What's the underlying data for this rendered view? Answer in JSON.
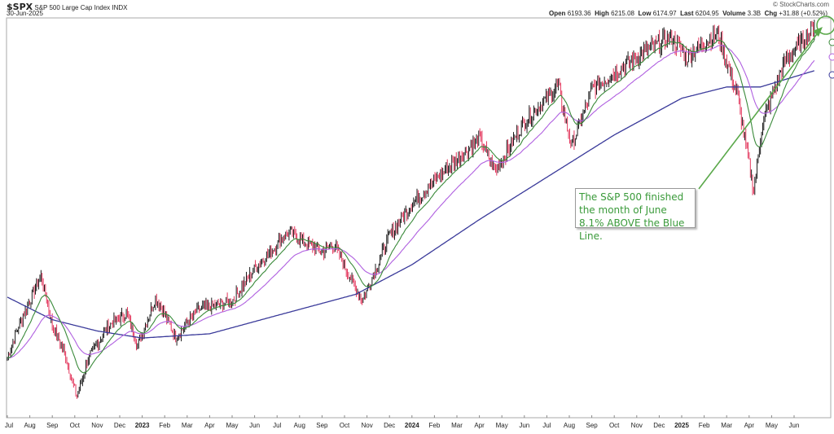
{
  "header": {
    "symbol": "$SPX",
    "name": "S&P 500 Large Cap Index",
    "exchange": "INDX",
    "date": "30-Jun-2025",
    "brand": "© StockCharts.com",
    "open_label": "Open",
    "open": "6193.36",
    "high_label": "High",
    "high": "6215.08",
    "low_label": "Low",
    "low": "6174.97",
    "last_label": "Last",
    "last": "6204.95",
    "volume_label": "Volume",
    "volume": "3.3B",
    "chg_label": "Chg",
    "chg": "+31.88 (+0.52%)"
  },
  "annotation": {
    "text": "The S&P 500 finished the month of June 8.1% ABOVE the Blue Line."
  },
  "chart_data": {
    "type": "line",
    "title": "$SPX S&P 500 Large Cap Index",
    "xlabel": "",
    "ylabel": "",
    "x_ticks": [
      "Jul",
      "Aug",
      "Sep",
      "Oct",
      "Nov",
      "Dec",
      "2023",
      "Feb",
      "Mar",
      "Apr",
      "May",
      "Jun",
      "Jul",
      "Aug",
      "Sep",
      "Oct",
      "Nov",
      "Dec",
      "2024",
      "Feb",
      "Mar",
      "Apr",
      "May",
      "Jun",
      "Jul",
      "Aug",
      "Sep",
      "Oct",
      "Nov",
      "Dec",
      "2025",
      "Feb",
      "Mar",
      "Apr",
      "May",
      "Jun"
    ],
    "year_ticks": [
      "2023",
      "2024",
      "2025"
    ],
    "ylim": [
      3490,
      6215
    ],
    "price_keypoints": {
      "month": [
        0,
        0.5,
        1.5,
        2,
        2.5,
        3.1,
        3.6,
        4.5,
        5.3,
        5.8,
        6.6,
        7.5,
        8.5,
        10,
        11,
        12.5,
        14,
        14.5,
        15.8,
        17,
        18,
        20,
        21,
        21.7,
        23,
        24.5,
        25.1,
        26,
        28,
        29.5,
        30.2,
        31.6,
        32.5,
        33.2,
        33.6,
        34.5,
        35.95
      ],
      "close": [
        3838,
        4068,
        4426,
        4068,
        3895,
        3560,
        3838,
        4068,
        4155,
        3924,
        4270,
        3982,
        4184,
        4242,
        4472,
        4732,
        4588,
        4646,
        4242,
        4703,
        4934,
        5252,
        5396,
        5165,
        5511,
        5771,
        5338,
        5742,
        5973,
        6117,
        5973,
        6146,
        5685,
        5021,
        5511,
        5915,
        6204
      ]
    },
    "ma200_keypoints": {
      "month": [
        0,
        2,
        4,
        6,
        9,
        12,
        15.5,
        18,
        21,
        24,
        27,
        30,
        32,
        33.5,
        36
      ],
      "value": [
        4270,
        4110,
        4030,
        3980,
        4010,
        4140,
        4290,
        4500,
        4820,
        5120,
        5420,
        5680,
        5760,
        5760,
        5880
      ]
    },
    "series": [
      {
        "name": "Price",
        "color": "#000000",
        "down_color": "#e0204a"
      },
      {
        "name": "Short EMA",
        "color": "#3a8a3a"
      },
      {
        "name": "Medium EMA",
        "color": "#b060e0"
      },
      {
        "name": "200-day MA (Blue Line)",
        "color": "#3a3a9a"
      }
    ]
  }
}
